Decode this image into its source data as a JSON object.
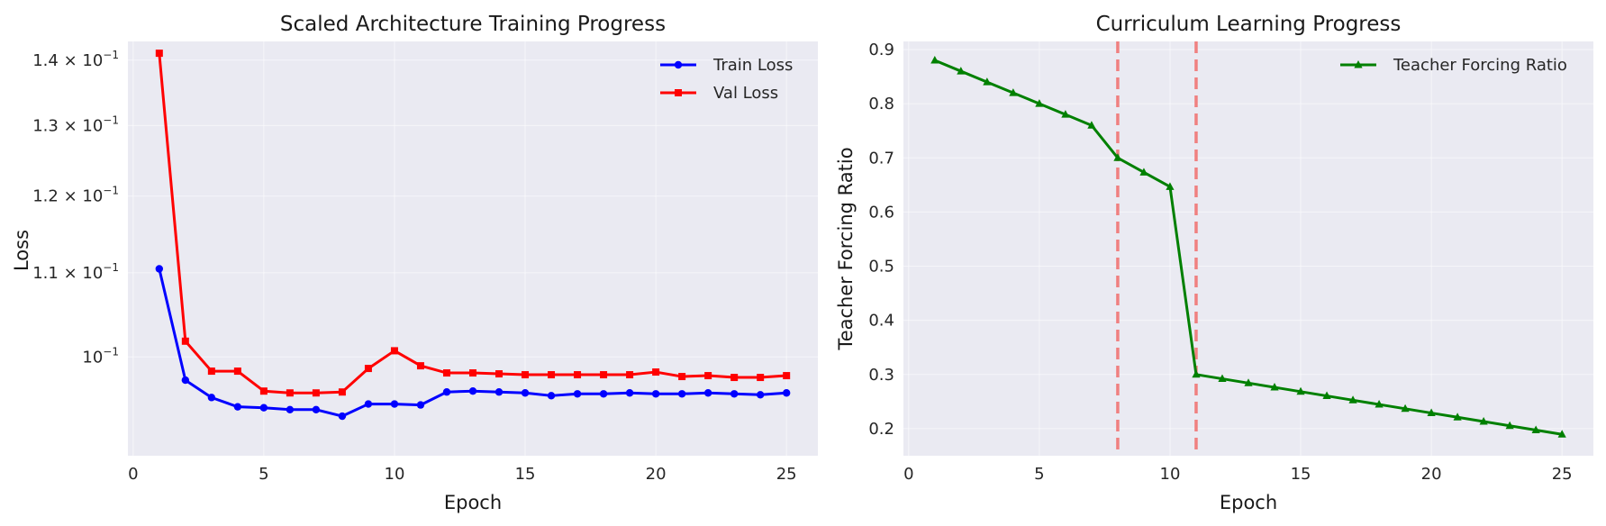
{
  "chart_data": [
    {
      "type": "line",
      "title": "Scaled Architecture Training Progress",
      "xlabel": "Epoch",
      "ylabel": "Loss",
      "yscale": "log",
      "xlim": [
        -0.2,
        26.2
      ],
      "ylim": [
        0.0894,
        0.143
      ],
      "xticks": [
        0,
        5,
        10,
        15,
        20,
        25
      ],
      "yticks": [
        {
          "value": 0.1,
          "label": "10⁻¹",
          "mant": "",
          "exp": "−1"
        },
        {
          "value": 0.11,
          "label": "1.1 × 10⁻¹",
          "mant": "1.1 × ",
          "exp": "−1"
        },
        {
          "value": 0.12,
          "label": "1.2 × 10⁻¹",
          "mant": "1.2 × ",
          "exp": "−1"
        },
        {
          "value": 0.13,
          "label": "1.3 × 10⁻¹",
          "mant": "1.3 × ",
          "exp": "−1"
        },
        {
          "value": 0.14,
          "label": "1.4 × 10⁻¹",
          "mant": "1.4 × ",
          "exp": "−1"
        }
      ],
      "grid": true,
      "legend_position": "top-right",
      "x": [
        1,
        2,
        3,
        4,
        5,
        6,
        7,
        8,
        9,
        10,
        11,
        12,
        13,
        14,
        15,
        16,
        17,
        18,
        19,
        20,
        21,
        22,
        23,
        24,
        25
      ],
      "series": [
        {
          "name": "Train Loss",
          "color": "#0000ff",
          "marker": "circle",
          "values": [
            0.1105,
            0.0974,
            0.0955,
            0.0945,
            0.0944,
            0.0942,
            0.0942,
            0.0935,
            0.0948,
            0.0948,
            0.0947,
            0.0961,
            0.0962,
            0.0961,
            0.096,
            0.0957,
            0.0959,
            0.0959,
            0.096,
            0.0959,
            0.0959,
            0.096,
            0.0959,
            0.0958,
            0.096
          ]
        },
        {
          "name": "Val Loss",
          "color": "#ff0000",
          "marker": "square",
          "values": [
            0.1411,
            0.1018,
            0.0984,
            0.0984,
            0.0962,
            0.096,
            0.096,
            0.0961,
            0.0987,
            0.1007,
            0.099,
            0.0982,
            0.0982,
            0.0981,
            0.098,
            0.098,
            0.098,
            0.098,
            0.098,
            0.0983,
            0.0978,
            0.0979,
            0.0977,
            0.0977,
            0.0979
          ]
        }
      ]
    },
    {
      "type": "line",
      "title": "Curriculum Learning Progress",
      "xlabel": "Epoch",
      "ylabel": "Teacher Forcing Ratio",
      "yscale": "linear",
      "xlim": [
        -0.2,
        26.2
      ],
      "ylim": [
        0.15,
        0.915
      ],
      "xticks": [
        0,
        5,
        10,
        15,
        20,
        25
      ],
      "yticks": [
        0.2,
        0.3,
        0.4,
        0.5,
        0.6,
        0.7,
        0.8,
        0.9
      ],
      "grid": true,
      "legend_position": "top-right",
      "vlines": [
        {
          "x": 8,
          "color": "#f08080",
          "style": "dashed"
        },
        {
          "x": 11,
          "color": "#f08080",
          "style": "dashed"
        }
      ],
      "x": [
        1,
        2,
        3,
        4,
        5,
        6,
        7,
        8,
        9,
        10,
        11,
        12,
        13,
        14,
        15,
        16,
        17,
        18,
        19,
        20,
        21,
        22,
        23,
        24,
        25
      ],
      "series": [
        {
          "name": "Teacher Forcing Ratio",
          "color": "#008000",
          "marker": "triangle",
          "values": [
            0.88,
            0.86,
            0.84,
            0.82,
            0.8,
            0.78,
            0.76,
            0.7,
            0.6733,
            0.6467,
            0.3,
            0.2921,
            0.2842,
            0.2763,
            0.2684,
            0.2605,
            0.2526,
            0.2447,
            0.2368,
            0.2289,
            0.2211,
            0.2132,
            0.2053,
            0.1974,
            0.1895
          ]
        }
      ]
    }
  ]
}
